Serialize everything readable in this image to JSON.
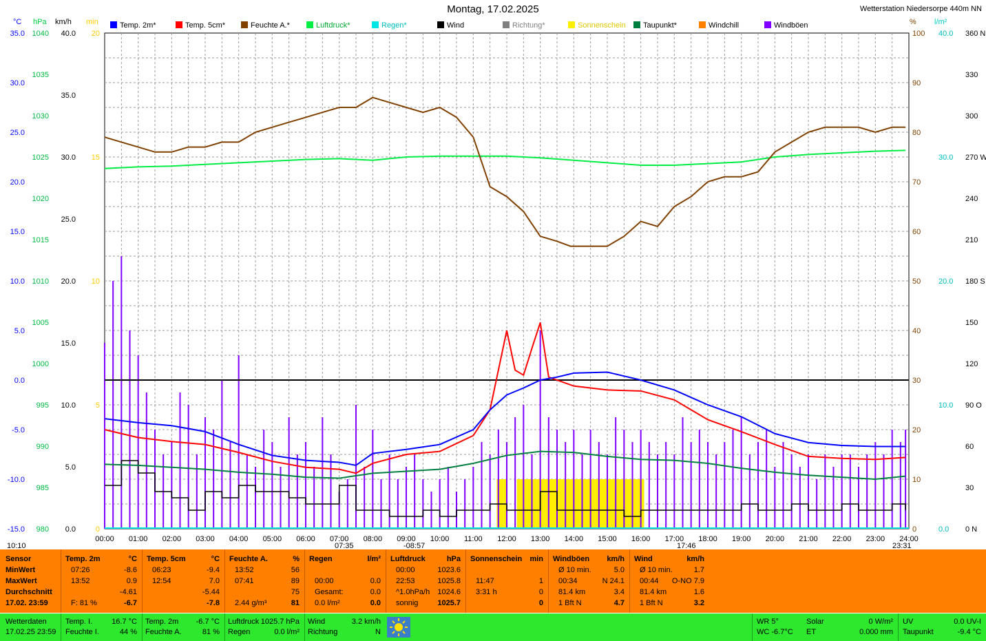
{
  "title": "Montag, 17.02.2025",
  "station": "Wetterstation Niedersorpe 440m NN",
  "legend": [
    {
      "label": "Temp. 2m*",
      "color": "#0000ff"
    },
    {
      "label": "Temp. 5cm*",
      "color": "#ff0000"
    },
    {
      "label": "Feuchte A.*",
      "color": "#804000"
    },
    {
      "label": "Luftdruck*",
      "color": "#00ee44"
    },
    {
      "label": "Regen*",
      "color": "#00e5e5"
    },
    {
      "label": "Wind",
      "color": "#000000"
    },
    {
      "label": "Richtung*",
      "color": "#808080"
    },
    {
      "label": "Sonnenschein",
      "color": "#ffee00"
    },
    {
      "label": "Taupunkt*",
      "color": "#007f3f"
    },
    {
      "label": "Windchill",
      "color": "#ff8000"
    },
    {
      "label": "Windböen",
      "color": "#8000ff"
    }
  ],
  "units": {
    "temp": "°C",
    "pressure": "hPa",
    "wind": "km/h",
    "sun": "min",
    "humidity": "%",
    "rain": "l/m²"
  },
  "chart_data": {
    "type": "line",
    "x_ticks": [
      "00:00",
      "01:00",
      "02:00",
      "03:00",
      "04:00",
      "05:00",
      "06:00",
      "07:00",
      "08:00",
      "09:00",
      "10:00",
      "11:00",
      "12:00",
      "13:00",
      "14:00",
      "15:00",
      "16:00",
      "17:00",
      "18:00",
      "19:00",
      "20:00",
      "21:00",
      "22:00",
      "23:00",
      "24:00"
    ],
    "axes": {
      "temp": {
        "ticks": [
          "35.0",
          "30.0",
          "25.0",
          "20.0",
          "15.0",
          "10.0",
          "5.0",
          "0.0",
          "-5.0",
          "-10.0",
          "-15.0"
        ],
        "ylim": [
          -15,
          35
        ]
      },
      "pressure": {
        "ticks": [
          "1040",
          "1035",
          "1030",
          "1025",
          "1020",
          "1015",
          "1010",
          "1005",
          "1000",
          "995",
          "990",
          "985",
          "980"
        ],
        "ylim": [
          980,
          1040
        ]
      },
      "wind": {
        "ticks": [
          "40.0",
          "35.0",
          "30.0",
          "25.0",
          "20.0",
          "15.0",
          "10.0",
          "5.0",
          "0.0"
        ],
        "ylim": [
          0,
          40
        ]
      },
      "sun": {
        "ticks": [
          "20",
          "15",
          "10",
          "5",
          "0"
        ],
        "ylim": [
          0,
          20
        ]
      },
      "humidity": {
        "ticks": [
          "100",
          "90",
          "80",
          "70",
          "60",
          "50",
          "40",
          "30",
          "20",
          "10",
          "0"
        ],
        "ylim": [
          0,
          100
        ]
      },
      "rain": {
        "ticks": [
          "40.0",
          "30.0",
          "20.0",
          "10.0",
          "0.0"
        ],
        "ylim": [
          0,
          40
        ]
      },
      "direction": {
        "ticks": [
          "360 N",
          "330",
          "300",
          "270 W",
          "240",
          "210",
          "180 S",
          "150",
          "120",
          "90 O",
          "60",
          "30",
          "0 N"
        ],
        "ylim": [
          0,
          360
        ]
      }
    },
    "series": [
      {
        "name": "Temp. 2m*",
        "axis": "temp",
        "x": [
          0,
          1,
          2,
          3,
          4,
          5,
          6,
          7,
          7.5,
          8,
          9,
          10,
          11,
          11.5,
          12,
          12.5,
          13,
          13.5,
          14,
          15,
          16,
          17,
          18,
          19,
          20,
          21,
          22,
          23,
          23.9
        ],
        "y": [
          -3.9,
          -4.3,
          -4.6,
          -5.2,
          -6.5,
          -7.6,
          -8.1,
          -8.3,
          -8.6,
          -7.4,
          -7.0,
          -6.5,
          -5.0,
          -3.0,
          -1.5,
          -0.8,
          0.0,
          0.3,
          0.7,
          0.8,
          0.0,
          -1.0,
          -2.5,
          -3.7,
          -5.4,
          -6.3,
          -6.6,
          -6.7,
          -6.7
        ]
      },
      {
        "name": "Temp. 5cm*",
        "axis": "temp",
        "x": [
          0,
          1,
          2,
          3,
          4,
          5,
          6,
          7,
          7.5,
          8,
          9,
          10,
          11,
          11.5,
          11.75,
          12,
          12.25,
          12.5,
          12.75,
          13,
          13.25,
          14,
          15,
          16,
          17,
          18,
          19,
          20,
          21,
          22,
          23,
          23.9
        ],
        "y": [
          -5.0,
          -5.8,
          -6.2,
          -6.5,
          -7.3,
          -8.2,
          -8.8,
          -9.0,
          -9.4,
          -8.4,
          -7.5,
          -7.2,
          -5.6,
          -3.0,
          1.0,
          5.0,
          1.0,
          0.5,
          3.2,
          5.8,
          0.3,
          -0.6,
          -1.0,
          -1.1,
          -2.0,
          -4.0,
          -5.2,
          -6.5,
          -7.7,
          -7.9,
          -8.0,
          -7.8
        ]
      },
      {
        "name": "Feuchte A.*",
        "axis": "humidity",
        "x": [
          0,
          0.5,
          1,
          1.5,
          2,
          2.5,
          3,
          3.5,
          4,
          4.5,
          5,
          5.5,
          6,
          6.5,
          7,
          7.5,
          8,
          8.5,
          9,
          9.5,
          10,
          10.5,
          11,
          11.5,
          12,
          12.5,
          13,
          13.5,
          13.9,
          14.3,
          14.7,
          15,
          15.5,
          16,
          16.5,
          17,
          17.5,
          18,
          18.5,
          19,
          19.5,
          20,
          20.5,
          21,
          21.5,
          22,
          22.5,
          23,
          23.5,
          23.9
        ],
        "y": [
          79,
          78,
          77,
          76,
          76,
          77,
          77,
          78,
          78,
          80,
          81,
          82,
          83,
          84,
          85,
          85,
          87,
          86,
          85,
          84,
          85,
          83,
          79,
          69,
          67,
          64,
          59,
          58,
          57,
          57,
          57,
          57,
          59,
          62,
          61,
          65,
          67,
          70,
          71,
          71,
          72,
          76,
          78,
          80,
          81,
          81,
          81,
          80,
          81,
          81
        ]
      },
      {
        "name": "Luftdruck*",
        "axis": "pressure",
        "x": [
          0,
          1,
          2,
          3,
          4,
          5,
          6,
          7,
          8,
          9,
          10,
          11,
          12,
          13,
          14,
          15,
          16,
          17,
          18,
          19,
          20,
          21,
          22,
          23,
          23.9
        ],
        "y": [
          1023.6,
          1023.8,
          1023.9,
          1024.1,
          1024.3,
          1024.5,
          1024.7,
          1024.8,
          1024.6,
          1025.0,
          1025.1,
          1025.1,
          1025.1,
          1024.9,
          1024.6,
          1024.3,
          1024.0,
          1024.0,
          1024.2,
          1024.4,
          1025.0,
          1025.3,
          1025.5,
          1025.7,
          1025.8
        ]
      },
      {
        "name": "Taupunkt*",
        "axis": "temp",
        "x": [
          0,
          1,
          2,
          3,
          4,
          5,
          6,
          7,
          8,
          9,
          10,
          11,
          12,
          13,
          14,
          15,
          16,
          17,
          18,
          19,
          20,
          21,
          22,
          23,
          23.9
        ],
        "y": [
          -8.5,
          -8.6,
          -8.8,
          -9.0,
          -9.3,
          -9.5,
          -9.8,
          -9.9,
          -9.4,
          -9.2,
          -9.0,
          -8.4,
          -7.6,
          -7.2,
          -7.3,
          -7.7,
          -8.0,
          -8.1,
          -8.4,
          -8.9,
          -9.3,
          -9.6,
          -9.8,
          -10.0,
          -9.7
        ]
      },
      {
        "name": "Wind",
        "axis": "wind",
        "x": [
          0,
          0.5,
          1,
          1.5,
          2,
          2.5,
          3,
          3.5,
          4,
          4.5,
          5,
          5.5,
          6,
          6.5,
          7,
          7.5,
          8,
          8.5,
          9,
          9.5,
          10,
          10.5,
          11,
          11.5,
          12,
          12.5,
          13,
          13.5,
          14,
          14.5,
          15,
          15.5,
          16,
          16.5,
          17,
          17.5,
          18,
          18.5,
          19,
          19.5,
          20,
          20.5,
          21,
          21.5,
          22,
          22.5,
          23,
          23.5,
          23.9
        ],
        "y": [
          3.5,
          5.5,
          4.5,
          3.0,
          2.5,
          1.5,
          3.0,
          2.5,
          3.5,
          3.0,
          3.0,
          2.5,
          2.0,
          2.0,
          3.5,
          1.5,
          1.5,
          1.0,
          1.0,
          1.5,
          1.0,
          1.5,
          1.5,
          2.0,
          1.5,
          1.5,
          3.0,
          1.5,
          1.5,
          1.5,
          1.5,
          1.0,
          1.5,
          1.5,
          1.5,
          1.5,
          1.5,
          1.5,
          2.0,
          1.5,
          1.5,
          2.0,
          1.5,
          1.5,
          2.0,
          1.5,
          1.5,
          2.0,
          1.5
        ]
      },
      {
        "name": "Windböen",
        "axis": "wind",
        "x": [
          0,
          0.25,
          0.5,
          0.75,
          1,
          1.25,
          1.5,
          1.75,
          2,
          2.25,
          2.5,
          2.75,
          3,
          3.25,
          3.5,
          3.75,
          4,
          4.25,
          4.5,
          4.75,
          5,
          5.25,
          5.5,
          5.75,
          6,
          6.25,
          6.5,
          6.75,
          7,
          7.25,
          7.5,
          7.75,
          8,
          8.25,
          8.5,
          8.75,
          9,
          9.25,
          9.5,
          9.75,
          10,
          10.25,
          10.5,
          10.75,
          11,
          11.25,
          11.5,
          11.75,
          12,
          12.25,
          12.5,
          12.75,
          13,
          13.25,
          13.5,
          13.75,
          14,
          14.25,
          14.5,
          14.75,
          15,
          15.25,
          15.5,
          15.75,
          16,
          16.25,
          16.5,
          16.75,
          17,
          17.25,
          17.5,
          17.75,
          18,
          18.25,
          18.5,
          18.75,
          19,
          19.25,
          19.5,
          19.75,
          20,
          20.25,
          20.5,
          20.75,
          21,
          21.25,
          21.5,
          21.75,
          22,
          22.25,
          22.5,
          22.75,
          23,
          23.25,
          23.5,
          23.75,
          23.9
        ],
        "y": [
          15,
          20,
          22,
          16,
          14,
          11,
          8,
          6,
          7,
          11,
          10,
          6,
          9,
          8,
          12,
          7,
          14,
          6,
          5,
          8,
          7,
          5,
          9,
          6,
          7,
          5,
          9,
          6,
          3,
          4,
          10,
          5,
          8,
          4,
          6,
          4,
          5,
          6,
          4,
          3,
          4,
          5,
          3,
          4,
          5,
          7,
          6,
          8,
          7,
          9,
          10,
          6,
          16,
          9,
          8,
          7,
          8,
          6,
          8,
          7,
          6,
          9,
          8,
          7,
          8,
          7,
          6,
          7,
          6,
          9,
          7,
          8,
          7,
          6,
          7,
          8,
          9,
          6,
          7,
          8,
          5,
          7,
          6,
          5,
          6,
          4,
          6,
          5,
          6,
          6,
          5,
          6,
          7,
          6,
          8,
          7,
          8
        ]
      },
      {
        "name": "Sonnenschein",
        "axis": "sun",
        "x": [
          11.7,
          11.9,
          12,
          12.3,
          12.5,
          12.8,
          13,
          13.5,
          14,
          14.5,
          15,
          15.5,
          15.9
        ],
        "y": [
          1,
          1,
          0,
          1,
          1,
          1,
          1,
          1,
          1,
          1,
          1,
          1,
          1
        ]
      }
    ],
    "zero_line": 0.0
  },
  "markers": {
    "sunrise_left": "10:10",
    "sunrise": "07:35",
    "noon": "-08:57",
    "sunset": "17:46",
    "moon": "23:31"
  },
  "tables": [
    {
      "header": [
        "Sensor",
        ""
      ],
      "rows": [
        [
          "MinWert",
          ""
        ],
        [
          "MaxWert",
          ""
        ],
        [
          "Durchschnitt",
          ""
        ],
        [
          "17.02. 23:59",
          ""
        ]
      ]
    },
    {
      "header": [
        "Temp. 2m",
        "°C"
      ],
      "rows": [
        [
          "07:26",
          "-8.6"
        ],
        [
          "13:52",
          "0.9"
        ],
        [
          "",
          "-4.61"
        ],
        [
          "F: 81 %",
          "-6.7"
        ]
      ]
    },
    {
      "header": [
        "Temp. 5cm",
        "°C"
      ],
      "rows": [
        [
          "06:23",
          "-9.4"
        ],
        [
          "12:54",
          "7.0"
        ],
        [
          "",
          "-5.44"
        ],
        [
          "",
          "-7.8"
        ]
      ]
    },
    {
      "header": [
        "Feuchte A.",
        "%"
      ],
      "rows": [
        [
          "13:52",
          "56"
        ],
        [
          "07:41",
          "89"
        ],
        [
          "",
          "75"
        ],
        [
          "2.44 g/m³",
          "81"
        ]
      ]
    },
    {
      "header": [
        "Regen",
        "l/m²"
      ],
      "rows": [
        [
          "",
          ""
        ],
        [
          "00:00",
          "0.0"
        ],
        [
          "Gesamt:",
          "0.0"
        ],
        [
          "0.0 l/m²",
          "0.0"
        ]
      ]
    },
    {
      "header": [
        "Luftdruck",
        "hPa"
      ],
      "rows": [
        [
          "00:00",
          "1023.6"
        ],
        [
          "22:53",
          "1025.8"
        ],
        [
          "^1.0hPa/h",
          "1024.6"
        ],
        [
          "sonnig",
          "1025.7"
        ]
      ]
    },
    {
      "header": [
        "Sonnenschein",
        "min"
      ],
      "rows": [
        [
          "",
          ""
        ],
        [
          "11:47",
          "1"
        ],
        [
          "3:31 h",
          "0"
        ],
        [
          "",
          "0"
        ]
      ]
    },
    {
      "header": [
        "Windböen",
        "km/h"
      ],
      "rows": [
        [
          "Ø 10 min.",
          "5.0"
        ],
        [
          "00:34",
          "N 24.1"
        ],
        [
          "81.4 km",
          "3.4"
        ],
        [
          "1 Bft N",
          "4.7"
        ]
      ]
    },
    {
      "header": [
        "Wind",
        "km/h"
      ],
      "rows": [
        [
          "Ø 10 min.",
          "1.7"
        ],
        [
          "00:44",
          "O-NO 7.9"
        ],
        [
          "81.4 km",
          "1.6"
        ],
        [
          "1 Bft N",
          "3.2"
        ]
      ]
    }
  ],
  "status": {
    "c1": [
      "Wetterdaten",
      "17.02.25 23:59"
    ],
    "c2": [
      [
        "Temp. I.",
        "16.7 °C"
      ],
      [
        "Feuchte I.",
        "44 %"
      ]
    ],
    "c3": [
      [
        "Temp. 2m",
        "-6.7 °C"
      ],
      [
        "Feuchte A.",
        "81 %"
      ]
    ],
    "c4": [
      [
        "Luftdruck",
        "1025.7 hPa"
      ],
      [
        "Regen",
        "0.0 l/m²"
      ]
    ],
    "c5": [
      [
        "Wind",
        "3.2 km/h"
      ],
      [
        "Richtung",
        "N"
      ]
    ],
    "c6": [
      [
        "WR 5°",
        "Solar",
        "0 W/m²"
      ],
      [
        "WC -6.7°C",
        "ET",
        "0.000 mm"
      ]
    ],
    "c7": [
      [
        "UV",
        "0.0 UV-I"
      ],
      [
        "Taupunkt",
        "-9.4 °C"
      ]
    ]
  }
}
